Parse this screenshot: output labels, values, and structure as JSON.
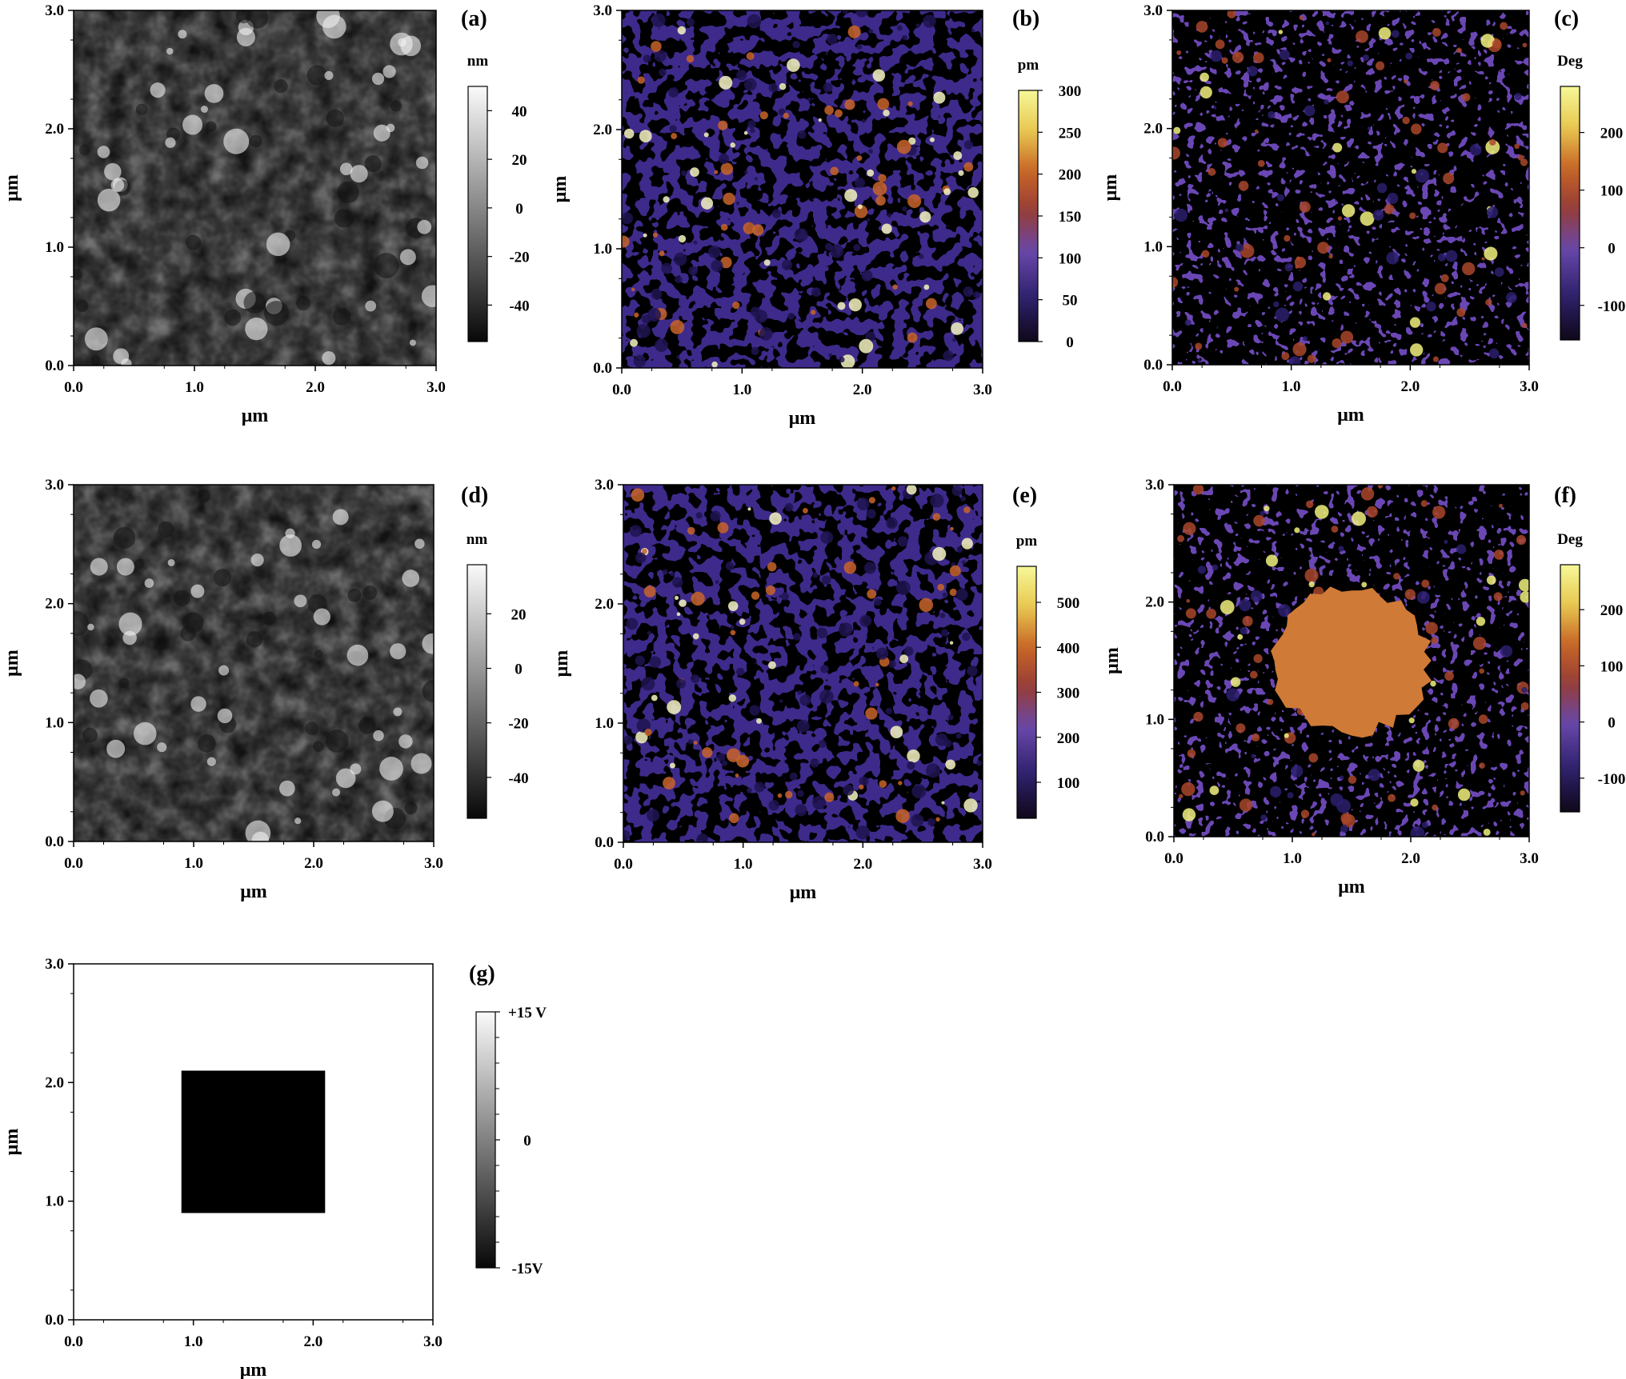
{
  "figure": {
    "panels": [
      {
        "label": "(a)",
        "kind": "topography",
        "xlabel": "μm",
        "ylabel": "μm",
        "x_ticks": [
          "0.0",
          "1.0",
          "2.0",
          "3.0"
        ],
        "y_ticks": [
          "0.0",
          "1.0",
          "2.0",
          "3.0"
        ],
        "colorbar": {
          "unit": "nm",
          "colormap": "gray",
          "ticks": [
            "40",
            "20",
            "0",
            "-20",
            "-40"
          ],
          "range": [
            -55,
            50
          ]
        }
      },
      {
        "label": "(b)",
        "kind": "amplitude",
        "xlabel": "μm",
        "ylabel": "μm",
        "x_ticks": [
          "0.0",
          "1.0",
          "2.0",
          "3.0"
        ],
        "y_ticks": [
          "0.0",
          "1.0",
          "2.0",
          "3.0"
        ],
        "colorbar": {
          "unit": "pm",
          "colormap": "afm-hot",
          "ticks": [
            "300",
            "250",
            "200",
            "150",
            "100",
            "50",
            "0"
          ],
          "range": [
            0,
            300
          ]
        }
      },
      {
        "label": "(c)",
        "kind": "phase",
        "xlabel": "μm",
        "ylabel": "μm",
        "x_ticks": [
          "0.0",
          "1.0",
          "2.0",
          "3.0"
        ],
        "y_ticks": [
          "0.0",
          "1.0",
          "2.0",
          "3.0"
        ],
        "colorbar": {
          "unit": "Deg",
          "colormap": "afm-hot",
          "ticks": [
            "200",
            "100",
            "0",
            "-100"
          ],
          "range": [
            -160,
            280
          ]
        }
      },
      {
        "label": "(d)",
        "kind": "topography",
        "xlabel": "μm",
        "ylabel": "μm",
        "x_ticks": [
          "0.0",
          "1.0",
          "2.0",
          "3.0"
        ],
        "y_ticks": [
          "0.0",
          "1.0",
          "2.0",
          "3.0"
        ],
        "colorbar": {
          "unit": "nm",
          "colormap": "gray",
          "ticks": [
            "20",
            "0",
            "-20",
            "-40"
          ],
          "range": [
            -55,
            38
          ]
        }
      },
      {
        "label": "(e)",
        "kind": "amplitude",
        "xlabel": "μm",
        "ylabel": "μm",
        "x_ticks": [
          "0.0",
          "1.0",
          "2.0",
          "3.0"
        ],
        "y_ticks": [
          "0.0",
          "1.0",
          "2.0",
          "3.0"
        ],
        "colorbar": {
          "unit": "pm",
          "colormap": "afm-hot",
          "ticks": [
            "500",
            "400",
            "300",
            "200",
            "100"
          ],
          "range": [
            20,
            580
          ]
        }
      },
      {
        "label": "(f)",
        "kind": "phase",
        "xlabel": "μm",
        "ylabel": "μm",
        "x_ticks": [
          "0.0",
          "1.0",
          "2.0",
          "3.0"
        ],
        "y_ticks": [
          "0.0",
          "1.0",
          "2.0",
          "3.0"
        ],
        "colorbar": {
          "unit": "Deg",
          "colormap": "afm-hot",
          "ticks": [
            "200",
            "100",
            "0",
            "-100"
          ],
          "range": [
            -160,
            280
          ]
        }
      },
      {
        "label": "(g)",
        "kind": "bias-pattern",
        "xlabel": "μm",
        "ylabel": "μm",
        "x_ticks": [
          "0.0",
          "1.0",
          "2.0",
          "3.0"
        ],
        "y_ticks": [
          "0.0",
          "1.0",
          "2.0",
          "3.0"
        ],
        "colorbar": {
          "unit": "",
          "colormap": "gray",
          "ticks": [
            "+15 V",
            "0",
            "-15V"
          ],
          "range": [
            -15,
            15
          ]
        },
        "pattern": {
          "background_bias_V": 15,
          "square_bias_V": -15,
          "square_x_um": [
            0.9,
            2.1
          ],
          "square_y_um": [
            0.9,
            2.1
          ]
        }
      }
    ]
  }
}
